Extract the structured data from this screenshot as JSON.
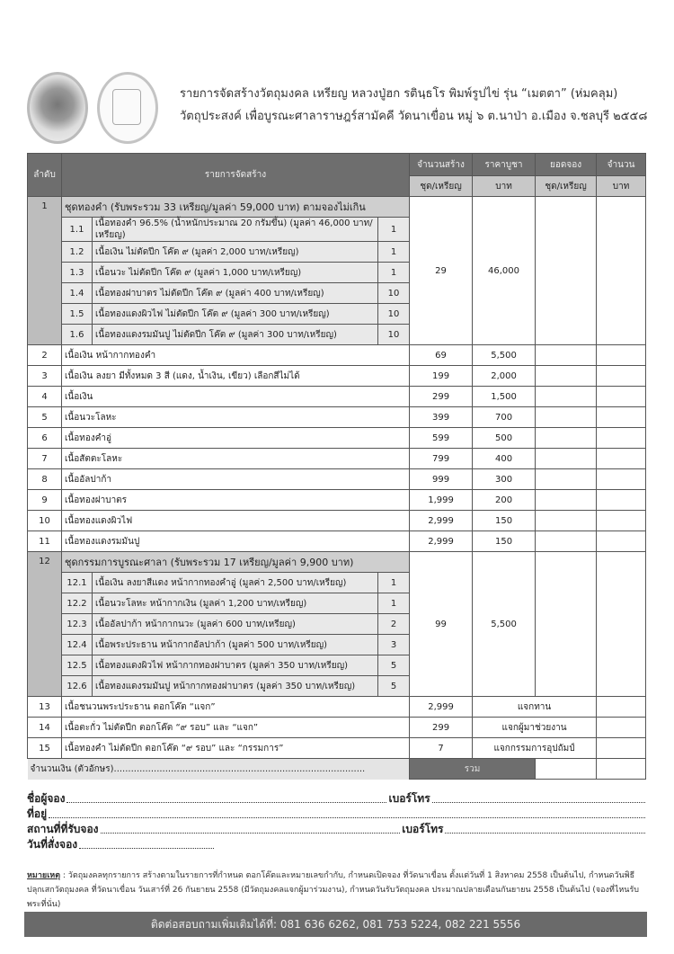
{
  "header": {
    "line1": "รายการจัดสร้างวัตถุมงคล เหรียญ หลวงปู่ฮก รตินฺธโร พิมพ์รูปไข่ รุ่น “เมตตา” (ห่มคลุม)",
    "line2": "วัตถุประสงค์ เพื่อบูรณะศาลาราษฎร์สามัคคี วัดนาเขื่อน หมู่ ๖ ต.นาป่า อ.เมือง จ.ชลบุรี ๒๕๕๘",
    "logo_text": "เมตตา"
  },
  "table": {
    "headers": {
      "no": "ลำดับ",
      "item": "รายการจัดสร้าง",
      "qty": "จำนวนสร้าง",
      "price": "ราคาบูชา",
      "booked": "ยอดจอง",
      "amount": "จำนวน",
      "qty_unit": "ชุด/เหรียญ",
      "price_unit": "บาท",
      "booked_unit": "ชุด/เหรียญ",
      "amount_unit": "บาท"
    },
    "rows": [
      {
        "no": "1",
        "title": "ชุดทองคำ (รับพระรวม 33 เหรียญ/มูลค่า 59,000 บาท) ตามจองไม่เกิน",
        "qty": "29",
        "price": "46,000",
        "sub": [
          {
            "no": "1.1",
            "desc": "เนื้อทองคำ 96.5% (น้ำหนักประมาณ 20 กรัมขึ้น) (มูลค่า 46,000 บาท/เหรียญ)",
            "n": "1"
          },
          {
            "no": "1.2",
            "desc": "เนื้อเงิน ไม่ตัดปีก โค๊ต ๙ (มูลค่า 2,000 บาท/เหรียญ)",
            "n": "1"
          },
          {
            "no": "1.3",
            "desc": "เนื้อนวะ ไม่ตัดปีก โค๊ต ๙ (มูลค่า 1,000 บาท/เหรียญ)",
            "n": "1"
          },
          {
            "no": "1.4",
            "desc": "เนื้อทองฝาบาตร ไม่ตัดปีก โค๊ต ๙ (มูลค่า 400 บาท/เหรียญ)",
            "n": "10"
          },
          {
            "no": "1.5",
            "desc": "เนื้อทองแดงผิวไฟ ไม่ตัดปีก โค๊ต ๙ (มูลค่า 300 บาท/เหรียญ)",
            "n": "10"
          },
          {
            "no": "1.6",
            "desc": "เนื้อทองแดงรมมันปู ไม่ตัดปีก โค๊ต ๙ (มูลค่า 300 บาท/เหรียญ)",
            "n": "10"
          }
        ]
      },
      {
        "no": "2",
        "title": "เนื้อเงิน หน้ากากทองคำ",
        "qty": "69",
        "price": "5,500"
      },
      {
        "no": "3",
        "title": "เนื้อเงิน ลงยา มีทั้งหมด 3 สี (แดง, น้ำเงิน, เขียว) เลือกสีไม่ได้",
        "qty": "199",
        "price": "2,000"
      },
      {
        "no": "4",
        "title": "เนื้อเงิน",
        "qty": "299",
        "price": "1,500"
      },
      {
        "no": "5",
        "title": "เนื้อนวะโลหะ",
        "qty": "399",
        "price": "700"
      },
      {
        "no": "6",
        "title": "เนื้อทองคำอู่",
        "qty": "599",
        "price": "500"
      },
      {
        "no": "7",
        "title": "เนื้อสัตตะโลหะ",
        "qty": "799",
        "price": "400"
      },
      {
        "no": "8",
        "title": "เนื้ออัลปาก้า",
        "qty": "999",
        "price": "300"
      },
      {
        "no": "9",
        "title": "เนื้อทองฝาบาตร",
        "qty": "1,999",
        "price": "200"
      },
      {
        "no": "10",
        "title": "เนื้อทองแดงผิวไฟ",
        "qty": "2,999",
        "price": "150"
      },
      {
        "no": "11",
        "title": "เนื้อทองแดงรมมันปู",
        "qty": "2,999",
        "price": "150"
      },
      {
        "no": "12",
        "title": "ชุดกรรมการบูรณะศาลา  (รับพระรวม 17 เหรียญ/มูลค่า 9,900 บาท)",
        "qty": "99",
        "price": "5,500",
        "sub": [
          {
            "no": "12.1",
            "desc": "เนื้อเงิน ลงยาสีแดง หน้ากากทองคำอู่ (มูลค่า 2,500 บาท/เหรียญ)",
            "n": "1"
          },
          {
            "no": "12.2",
            "desc": "เนื้อนวะโลหะ หน้ากากเงิน (มูลค่า 1,200 บาท/เหรียญ)",
            "n": "1"
          },
          {
            "no": "12.3",
            "desc": "เนื้ออัลปาก้า หน้ากากนวะ (มูลค่า 600 บาท/เหรียญ)",
            "n": "2"
          },
          {
            "no": "12.4",
            "desc": "เนื้อพระประธาน หน้ากากอัลปาก้า (มูลค่า 500 บาท/เหรียญ)",
            "n": "3"
          },
          {
            "no": "12.5",
            "desc": "เนื้อทองแดงผิวไฟ หน้ากากทองฝาบาตร (มูลค่า 350 บาท/เหรียญ)",
            "n": "5"
          },
          {
            "no": "12.6",
            "desc": "เนื้อทองแดงรมมันปู หน้ากากทองฝาบาตร (มูลค่า 350 บาท/เหรียญ)",
            "n": "5"
          }
        ]
      },
      {
        "no": "13",
        "title": "เนื้อชนวนพระประธาน ตอกโค๊ต “แจก”",
        "qty": "2,999",
        "note": "แจกทาน"
      },
      {
        "no": "14",
        "title": "เนื้อตะกั่ว ไม่ตัดปีก ตอกโค๊ต “๙ รอบ” และ “แจก”",
        "qty": "299",
        "note": "แจกผู้มาช่วยงาน"
      },
      {
        "no": "15",
        "title": "เนื้อทองคำ ไม่ตัดปีก ตอกโค๊ต “๙ รอบ” และ “กรรมการ”",
        "qty": "7",
        "note": "แจกกรรมการอุปถัมป์"
      }
    ],
    "amount_words": "จำนวนเงิน (ตัวอักษร)........................................................................................",
    "total_label": "รวม"
  },
  "form": {
    "name": "ชื่อผู้จอง",
    "phone": "เบอร์โทร",
    "address": "ที่อยู่",
    "place": "สถานที่ที่รับจอง",
    "phone2": "เบอร์โทร",
    "date": "วันที่สั่งจอง"
  },
  "note": {
    "label": "หมายเหตุ",
    "text": " : วัตถุมงคลทุกรายการ สร้างตามในรายการที่กำหนด ตอกโค๊ตและหมายเลขกำกับ, กำหนดเปิดจอง ที่วัดนาเขื่อน ตั้งแต่วันที่ 1 สิงหาคม 2558 เป็นต้นไป, กำหนดวันพิธีปลุกเสกวัตถุมงคล ที่วัดนาเขื่อน วันเสาร์ที่ 26 กันยายน 2558 (มีวัตถุมงคลแจกผู้มาร่วมงาน), กำหนดวันรับวัตถุมงคล ประมาณปลายเดือนกันยายน 2558 เป็นต้นไป (จองที่ไหนรับพระที่นั่น)"
  },
  "footer": {
    "label": "ติดต่อสอบถามเพิ่มเติมได้ที่: ",
    "phones": "081 636 6262, 081 753 5224, 082 221 5556"
  },
  "colors": {
    "header_dark": "#6e6e6e",
    "header_light": "#c8c8c8",
    "group_bg": "#bdbdbd",
    "sub_bg": "#e9e9e9",
    "footer_bg": "#6a6a6a"
  }
}
